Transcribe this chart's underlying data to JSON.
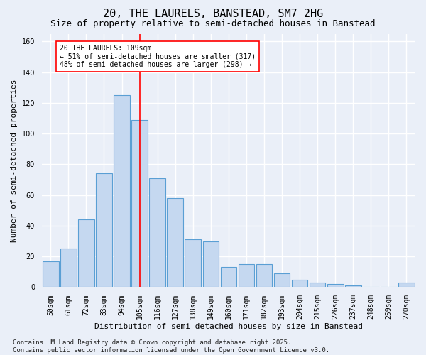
{
  "title": "20, THE LAURELS, BANSTEAD, SM7 2HG",
  "subtitle": "Size of property relative to semi-detached houses in Banstead",
  "xlabel": "Distribution of semi-detached houses by size in Banstead",
  "ylabel": "Number of semi-detached properties",
  "categories": [
    "50sqm",
    "61sqm",
    "72sqm",
    "83sqm",
    "94sqm",
    "105sqm",
    "116sqm",
    "127sqm",
    "138sqm",
    "149sqm",
    "160sqm",
    "171sqm",
    "182sqm",
    "193sqm",
    "204sqm",
    "215sqm",
    "226sqm",
    "237sqm",
    "248sqm",
    "259sqm",
    "270sqm"
  ],
  "values": [
    17,
    25,
    44,
    74,
    125,
    109,
    71,
    58,
    31,
    30,
    13,
    15,
    15,
    9,
    5,
    3,
    2,
    1,
    0,
    0,
    3
  ],
  "bar_color": "#c5d8f0",
  "bar_edge_color": "#5a9fd4",
  "vline_x": 5,
  "vline_color": "red",
  "annotation_title": "20 THE LAURELS: 109sqm",
  "annotation_line1": "← 51% of semi-detached houses are smaller (317)",
  "annotation_line2": "48% of semi-detached houses are larger (298) →",
  "annotation_box_color": "white",
  "annotation_box_edge": "red",
  "ylim": [
    0,
    165
  ],
  "yticks": [
    0,
    20,
    40,
    60,
    80,
    100,
    120,
    140,
    160
  ],
  "footer_line1": "Contains HM Land Registry data © Crown copyright and database right 2025.",
  "footer_line2": "Contains public sector information licensed under the Open Government Licence v3.0.",
  "bg_color": "#eaeff8",
  "plot_bg_color": "#eaeff8",
  "title_fontsize": 11,
  "subtitle_fontsize": 9,
  "tick_fontsize": 7,
  "ylabel_fontsize": 8,
  "xlabel_fontsize": 8,
  "footer_fontsize": 6.5
}
